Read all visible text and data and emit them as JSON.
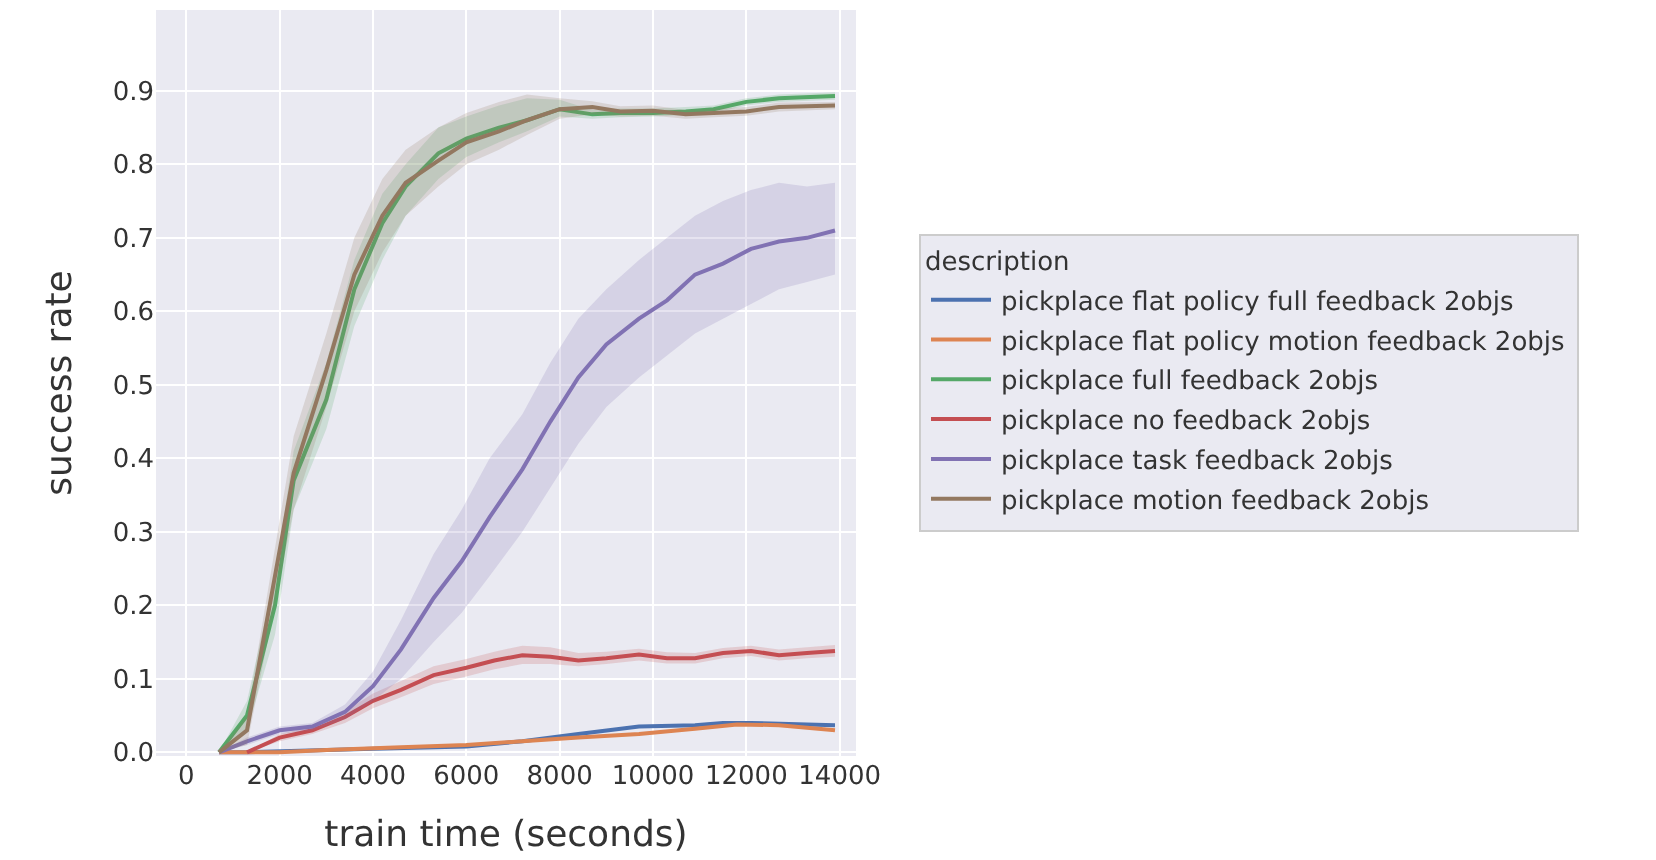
{
  "chart_data": {
    "type": "line",
    "xlabel": "train time (seconds)",
    "ylabel": "success rate",
    "legend_title": "description",
    "legend": "right",
    "grid": true,
    "marker": "none",
    "line_style": "solid",
    "xlim": [
      -650,
      14350
    ],
    "xticks": [
      0,
      2000,
      4000,
      6000,
      8000,
      10000,
      12000,
      14000
    ],
    "ylim": [
      -0.005,
      1.01
    ],
    "yticks": [
      {
        "value": 0,
        "label": "0.0"
      },
      0.1,
      0.2,
      0.3,
      0.4,
      0.5,
      0.6,
      0.7,
      0.8,
      0.9
    ],
    "series": [
      {
        "name": "pickplace flat policy full feedback 2objs",
        "color": "#4c72b0",
        "x": [
          700,
          1300,
          4000,
          6000,
          7200,
          8400,
          9700,
          10900,
          11500,
          12100,
          13300,
          13900
        ],
        "values": [
          0,
          0,
          0.005,
          0.008,
          0.015,
          0.025,
          0.035,
          0.037,
          0.04,
          0.04,
          0.038,
          0.037
        ]
      },
      {
        "name": "pickplace flat policy motion feedback 2objs",
        "color": "#dd8452",
        "x": [
          700,
          2000,
          3000,
          4600,
          6000,
          7200,
          8400,
          9700,
          10900,
          11800,
          12700,
          13900
        ],
        "values": [
          0,
          0,
          0.003,
          0.007,
          0.01,
          0.015,
          0.02,
          0.025,
          0.032,
          0.038,
          0.037,
          0.03
        ]
      },
      {
        "name": "pickplace full feedback 2objs",
        "color": "#55a868",
        "x": [
          700,
          1300,
          1900,
          2300,
          3000,
          3600,
          4200,
          4700,
          5400,
          6000,
          6700,
          7300,
          8000,
          8700,
          9300,
          10000,
          10700,
          11300,
          12000,
          12700,
          13900
        ],
        "values": [
          0,
          0.05,
          0.2,
          0.37,
          0.48,
          0.63,
          0.72,
          0.77,
          0.815,
          0.835,
          0.85,
          0.86,
          0.875,
          0.868,
          0.87,
          0.87,
          0.872,
          0.875,
          0.885,
          0.89,
          0.893
        ],
        "lower": [
          0,
          0.03,
          0.16,
          0.33,
          0.44,
          0.58,
          0.67,
          0.73,
          0.78,
          0.81,
          0.83,
          0.845,
          0.865,
          0.862,
          0.864,
          0.865,
          0.867,
          0.87,
          0.88,
          0.885,
          0.888
        ],
        "upper": [
          0,
          0.07,
          0.24,
          0.41,
          0.53,
          0.67,
          0.76,
          0.8,
          0.85,
          0.865,
          0.88,
          0.89,
          0.888,
          0.874,
          0.876,
          0.876,
          0.878,
          0.88,
          0.89,
          0.895,
          0.898
        ]
      },
      {
        "name": "pickplace no feedback 2objs",
        "color": "#c44e52",
        "x": [
          1300,
          2000,
          2700,
          3400,
          4000,
          4600,
          5300,
          6000,
          6600,
          7200,
          7800,
          8400,
          9000,
          9700,
          10300,
          10900,
          11500,
          12100,
          12700,
          13300,
          13900
        ],
        "values": [
          0,
          0.02,
          0.03,
          0.048,
          0.07,
          0.085,
          0.105,
          0.115,
          0.125,
          0.132,
          0.13,
          0.125,
          0.128,
          0.133,
          0.128,
          0.128,
          0.135,
          0.138,
          0.132,
          0.135,
          0.138
        ],
        "lower": [
          0,
          0.015,
          0.025,
          0.04,
          0.06,
          0.075,
          0.093,
          0.103,
          0.113,
          0.12,
          0.12,
          0.117,
          0.12,
          0.125,
          0.121,
          0.121,
          0.128,
          0.131,
          0.125,
          0.128,
          0.13
        ],
        "upper": [
          0,
          0.025,
          0.035,
          0.056,
          0.08,
          0.097,
          0.117,
          0.127,
          0.137,
          0.145,
          0.143,
          0.135,
          0.137,
          0.141,
          0.136,
          0.135,
          0.142,
          0.145,
          0.14,
          0.143,
          0.146
        ]
      },
      {
        "name": "pickplace task feedback 2objs",
        "color": "#8172b3",
        "x": [
          700,
          1300,
          2000,
          2700,
          3400,
          4000,
          4600,
          5300,
          5900,
          6500,
          7200,
          7800,
          8400,
          9000,
          9700,
          10300,
          10900,
          11500,
          12100,
          12700,
          13300,
          13900
        ],
        "values": [
          0,
          0.015,
          0.03,
          0.035,
          0.055,
          0.09,
          0.14,
          0.21,
          0.26,
          0.32,
          0.385,
          0.45,
          0.51,
          0.555,
          0.59,
          0.615,
          0.65,
          0.665,
          0.685,
          0.695,
          0.7,
          0.71
        ],
        "lower": [
          0,
          0.01,
          0.025,
          0.03,
          0.045,
          0.07,
          0.1,
          0.15,
          0.19,
          0.24,
          0.3,
          0.36,
          0.42,
          0.47,
          0.51,
          0.54,
          0.57,
          0.59,
          0.61,
          0.63,
          0.64,
          0.65
        ],
        "upper": [
          0,
          0.02,
          0.035,
          0.04,
          0.065,
          0.11,
          0.18,
          0.27,
          0.33,
          0.4,
          0.46,
          0.53,
          0.59,
          0.63,
          0.67,
          0.7,
          0.73,
          0.75,
          0.765,
          0.775,
          0.77,
          0.775
        ]
      },
      {
        "name": "pickplace motion feedback 2objs",
        "color": "#937860",
        "x": [
          700,
          1300,
          2300,
          3000,
          3600,
          4200,
          4700,
          5400,
          6000,
          6700,
          7300,
          8000,
          8700,
          9300,
          10000,
          10700,
          11300,
          12000,
          12700,
          13900
        ],
        "values": [
          0,
          0.03,
          0.38,
          0.52,
          0.65,
          0.73,
          0.775,
          0.805,
          0.83,
          0.845,
          0.86,
          0.875,
          0.878,
          0.872,
          0.873,
          0.868,
          0.87,
          0.872,
          0.878,
          0.88
        ],
        "lower": [
          0,
          0.01,
          0.33,
          0.47,
          0.6,
          0.68,
          0.73,
          0.77,
          0.8,
          0.82,
          0.84,
          0.862,
          0.868,
          0.865,
          0.866,
          0.862,
          0.864,
          0.866,
          0.872,
          0.875
        ],
        "upper": [
          0,
          0.05,
          0.43,
          0.57,
          0.7,
          0.78,
          0.82,
          0.85,
          0.87,
          0.885,
          0.895,
          0.89,
          0.886,
          0.879,
          0.88,
          0.874,
          0.876,
          0.878,
          0.884,
          0.885
        ]
      }
    ]
  }
}
